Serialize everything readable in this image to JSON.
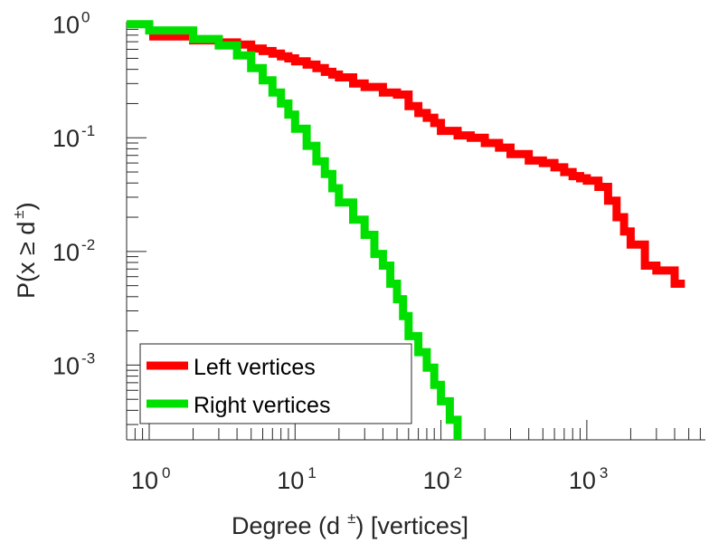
{
  "chart_data": {
    "type": "line",
    "step": true,
    "xscale": "log",
    "yscale": "log",
    "xlim": [
      0.7,
      6500
    ],
    "ylim": [
      0.00022,
      1.05
    ],
    "xlabel": {
      "main": "Degree (d",
      "superscript": "±",
      "suffix": ") [vertices]"
    },
    "ylabel": {
      "main": "P(x ≥ d",
      "superscript": "±",
      "suffix": ")"
    },
    "xticks": [
      {
        "value": 1,
        "base": "10",
        "exp": "0"
      },
      {
        "value": 10,
        "base": "10",
        "exp": "1"
      },
      {
        "value": 100,
        "base": "10",
        "exp": "2"
      },
      {
        "value": 1000,
        "base": "10",
        "exp": "3"
      }
    ],
    "yticks": [
      {
        "value": 1,
        "base": "10",
        "exp": "0"
      },
      {
        "value": 0.1,
        "base": "10",
        "exp": "-1"
      },
      {
        "value": 0.01,
        "base": "10",
        "exp": "-2"
      },
      {
        "value": 0.001,
        "base": "10",
        "exp": "-3"
      }
    ],
    "legend_position": "bottom-left",
    "series": [
      {
        "name": "Left vertices",
        "color": "#ff0000",
        "x": [
          1,
          2,
          3,
          4,
          5,
          6,
          7,
          8,
          9,
          10,
          12,
          14,
          16,
          18,
          20,
          25,
          30,
          40,
          50,
          60,
          70,
          80,
          90,
          100,
          130,
          160,
          200,
          250,
          300,
          400,
          500,
          600,
          700,
          800,
          900,
          1000,
          1200,
          1400,
          1600,
          1800,
          2000,
          2500,
          3000,
          4000,
          4700
        ],
        "y": [
          0.78,
          0.72,
          0.69,
          0.66,
          0.61,
          0.58,
          0.55,
          0.52,
          0.5,
          0.47,
          0.44,
          0.41,
          0.38,
          0.36,
          0.34,
          0.3,
          0.28,
          0.25,
          0.24,
          0.19,
          0.165,
          0.15,
          0.135,
          0.115,
          0.105,
          0.1,
          0.09,
          0.082,
          0.072,
          0.063,
          0.06,
          0.055,
          0.05,
          0.046,
          0.044,
          0.042,
          0.037,
          0.028,
          0.02,
          0.015,
          0.0115,
          0.0075,
          0.0068,
          0.0052,
          0.0052
        ]
      },
      {
        "name": "Right vertices",
        "color": "#00e000",
        "x": [
          0.7,
          1,
          2,
          3,
          4,
          5,
          6,
          7,
          8,
          9,
          10,
          12,
          14,
          16,
          18,
          20,
          25,
          30,
          35,
          40,
          45,
          50,
          55,
          60,
          70,
          80,
          90,
          100,
          115,
          130
        ],
        "y": [
          1,
          0.88,
          0.74,
          0.65,
          0.53,
          0.41,
          0.32,
          0.25,
          0.2,
          0.16,
          0.12,
          0.085,
          0.062,
          0.048,
          0.036,
          0.027,
          0.019,
          0.014,
          0.0095,
          0.0075,
          0.0052,
          0.0038,
          0.0027,
          0.0018,
          0.0013,
          0.00095,
          0.00067,
          0.00048,
          0.00033,
          0.00022
        ]
      }
    ]
  }
}
